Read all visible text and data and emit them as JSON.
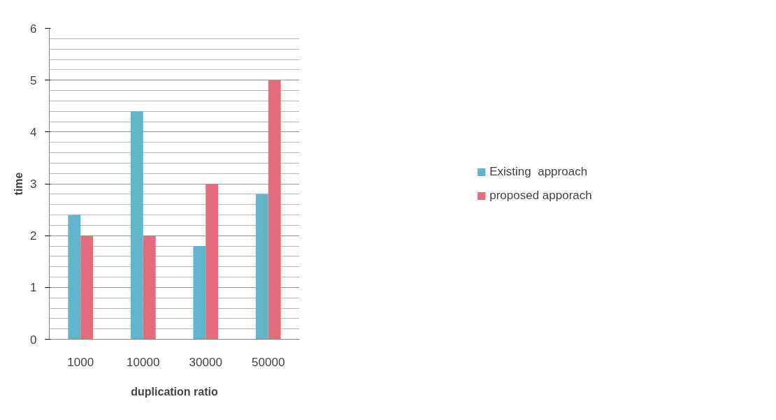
{
  "chart_data": {
    "type": "bar",
    "xlabel": "duplication ratio",
    "ylabel": "time",
    "categories": [
      "1000",
      "10000",
      "30000",
      "50000"
    ],
    "series": [
      {
        "name": "Existing  approach",
        "color": "#62b6cc",
        "values": [
          2.4,
          4.4,
          1.8,
          2.8
        ]
      },
      {
        "name": "proposed apporach",
        "color": "#e66b7c",
        "values": [
          2.0,
          2.0,
          3.0,
          5.0
        ]
      }
    ],
    "ylim": [
      0,
      6
    ],
    "yticks": [
      0,
      1,
      2,
      3,
      4,
      5,
      6
    ],
    "grid": "y",
    "legend": "right"
  }
}
